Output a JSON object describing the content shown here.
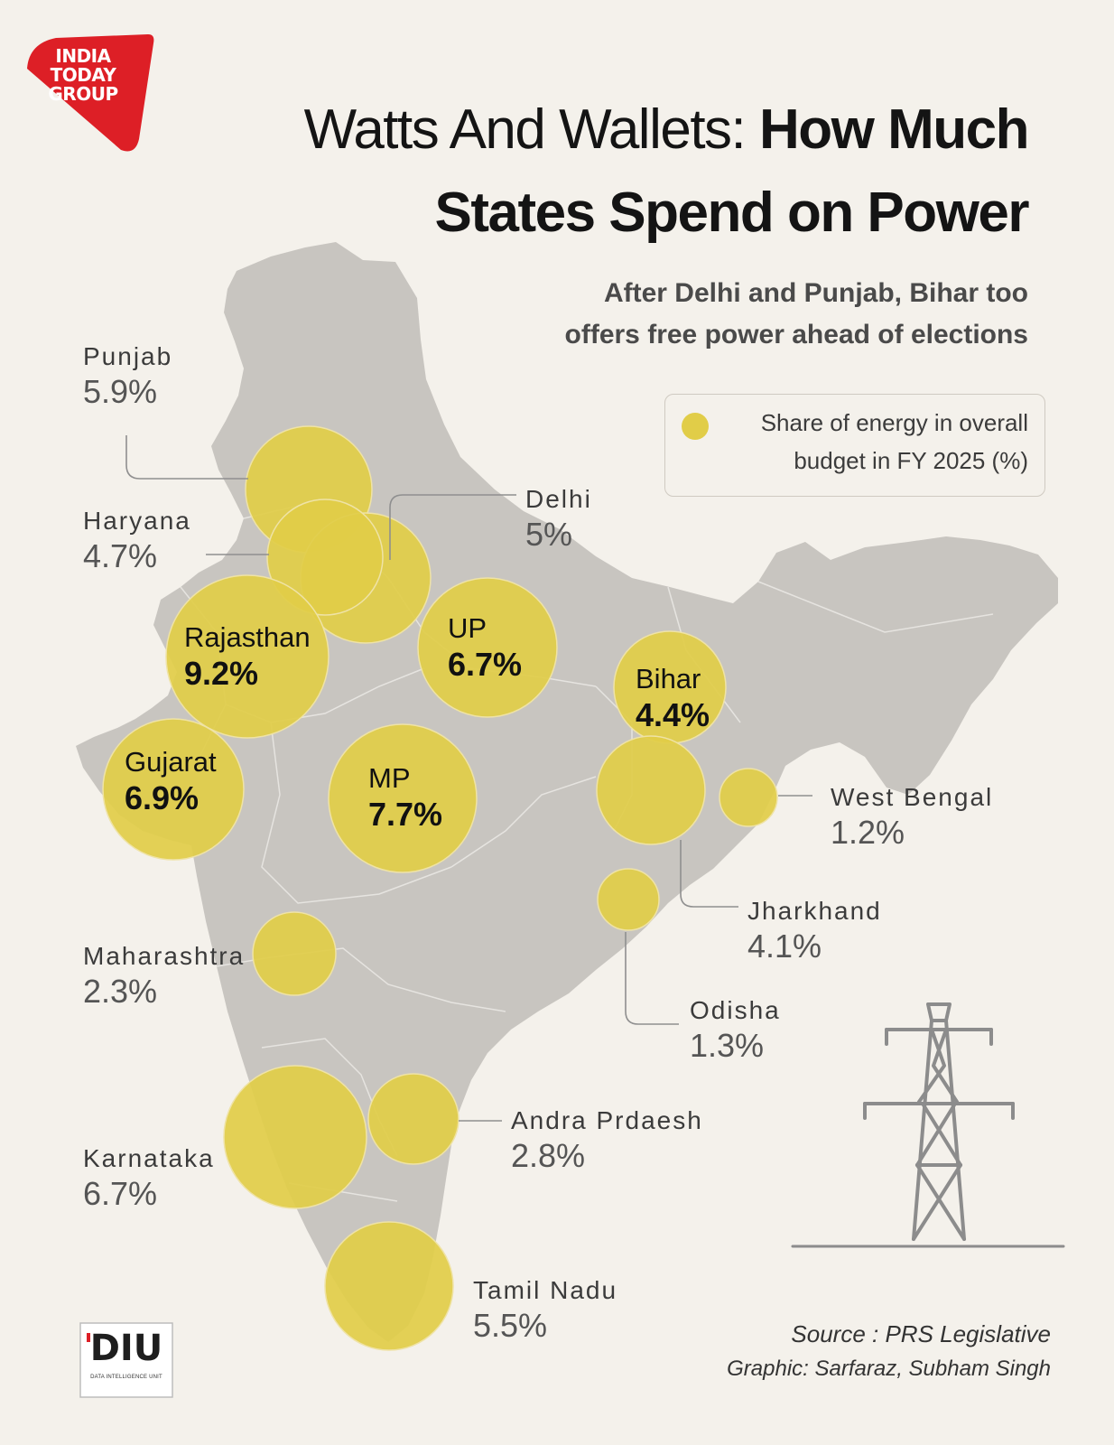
{
  "brand": {
    "logo_lines": [
      "INDIA",
      "TODAY",
      "GROUP"
    ],
    "unit_logo": "DIU",
    "unit_logo_sub": "DATA INTELLIGENCE UNIT"
  },
  "header": {
    "title_light": "Watts And Wallets: ",
    "title_bold_1": "How Much",
    "title_bold_2": "States Spend on Power",
    "subtitle_line1": "After Delhi and Punjab, Bihar too",
    "subtitle_line2": "offers free power ahead of elections"
  },
  "legend": {
    "line1": "Share of energy in overall",
    "line2": "budget in FY 2025 (%)",
    "color": "#e1cd48"
  },
  "colors": {
    "bubble": "#e1cd48",
    "map": "#c8c5c0",
    "map_border": "#e6e4e0",
    "leader": "#8f8f8f",
    "logo_red": "#dd1f26"
  },
  "chart_data": {
    "type": "proportional-symbol-map",
    "title": "Watts And Wallets: How Much States Spend on Power",
    "subtitle": "After Delhi and Punjab, Bihar too offers free power ahead of elections",
    "measure": "Share of energy in overall budget in FY 2025 (%)",
    "unit": "%",
    "states": [
      {
        "name": "Punjab",
        "display": "5.9%",
        "value": 5.9
      },
      {
        "name": "Haryana",
        "display": "4.7%",
        "value": 4.7
      },
      {
        "name": "Delhi",
        "display": "5%",
        "value": 5.0
      },
      {
        "name": "Rajasthan",
        "display": "9.2%",
        "value": 9.2
      },
      {
        "name": "UP",
        "display": "6.7%",
        "value": 6.7
      },
      {
        "name": "Bihar",
        "display": "4.4%",
        "value": 4.4
      },
      {
        "name": "Gujarat",
        "display": "6.9%",
        "value": 6.9
      },
      {
        "name": "MP",
        "display": "7.7%",
        "value": 7.7
      },
      {
        "name": "West Bengal",
        "display": "1.2%",
        "value": 1.2
      },
      {
        "name": "Jharkhand",
        "display": "4.1%",
        "value": 4.1
      },
      {
        "name": "Odisha",
        "display": "1.3%",
        "value": 1.3
      },
      {
        "name": "Maharashtra",
        "display": "2.3%",
        "value": 2.3
      },
      {
        "name": "Andra Prdaesh",
        "display": "2.8%",
        "value": 2.8
      },
      {
        "name": "Karnataka",
        "display": "6.7%",
        "value": 6.7
      },
      {
        "name": "Tamil Nadu",
        "display": "5.5%",
        "value": 5.5
      }
    ]
  },
  "footer": {
    "source": "Source : PRS Legislative",
    "credit": "Graphic: Sarfaraz, Subham Singh"
  }
}
